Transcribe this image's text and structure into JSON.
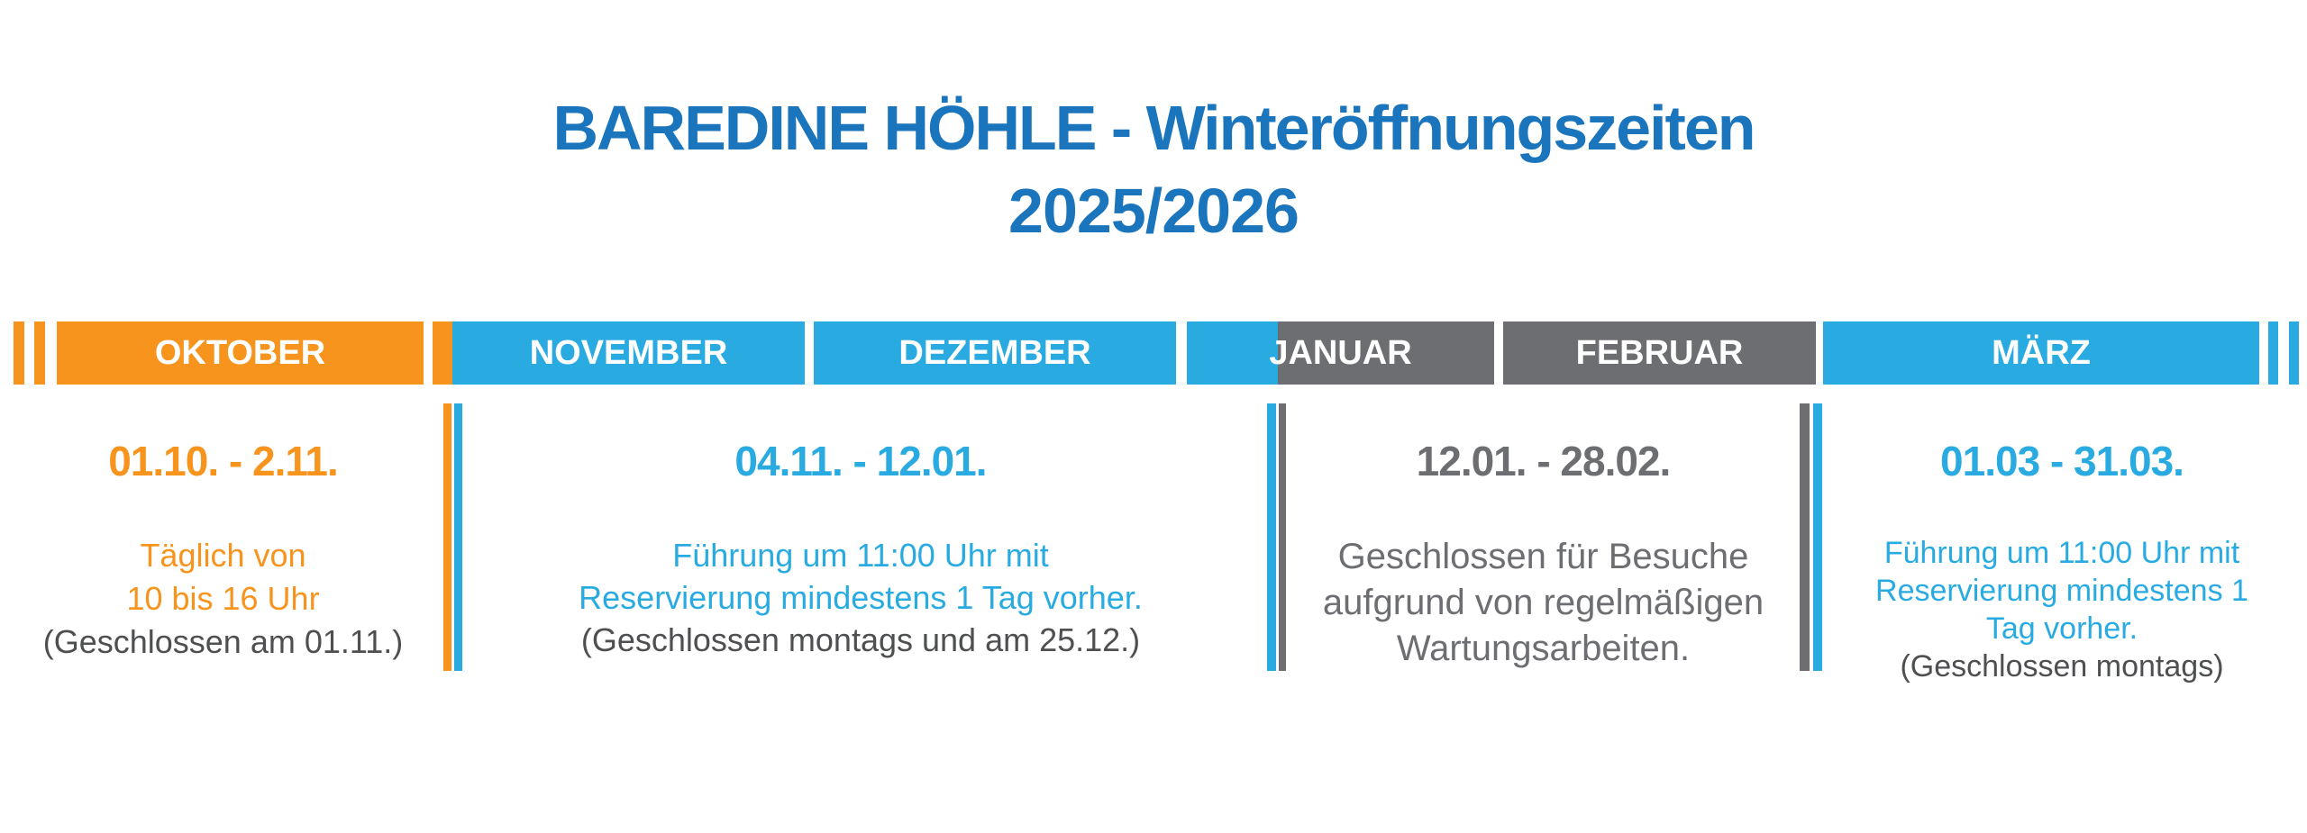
{
  "title": {
    "line1": "BAREDINE HÖHLE - Winteröffnungszeiten",
    "line2": "2025/2026"
  },
  "colors": {
    "orange": "#F6941E",
    "blue": "#29ABE2",
    "gray": "#6D6E71",
    "title-blue": "#1B75BC",
    "note-gray": "#4E4F51"
  },
  "timeline": {
    "months": [
      {
        "label": "OKTOBER",
        "color": "orange"
      },
      {
        "label": "NOVEMBER",
        "color": "blue"
      },
      {
        "label": "DEZEMBER",
        "color": "blue"
      },
      {
        "label": "JANUAR",
        "color": "blue-gray-split"
      },
      {
        "label": "FEBRUAR",
        "color": "gray"
      },
      {
        "label": "MÄRZ",
        "color": "blue"
      }
    ]
  },
  "periods": [
    {
      "date_range": "01.10. - 2.11.",
      "accent": "orange",
      "lines": [
        "Täglich von",
        "10 bis 16 Uhr"
      ],
      "note": "(Geschlossen am 01.11.)"
    },
    {
      "date_range": "04.11. - 12.01.",
      "accent": "blue",
      "lines": [
        "Führung um 11:00 Uhr mit",
        "Reservierung mindestens 1 Tag vorher."
      ],
      "note": "(Geschlossen montags und am 25.12.)"
    },
    {
      "date_range": "12.01. - 28.02.",
      "accent": "gray",
      "lines": [
        "Geschlossen für Besuche",
        "aufgrund von regelmäßigen",
        "Wartungsarbeiten."
      ]
    },
    {
      "date_range": "01.03 - 31.03.",
      "accent": "blue",
      "lines": [
        "Führung um 11:00 Uhr mit",
        "Reservierung mindestens 1",
        "Tag vorher."
      ],
      "note": "(Geschlossen montags)"
    }
  ]
}
